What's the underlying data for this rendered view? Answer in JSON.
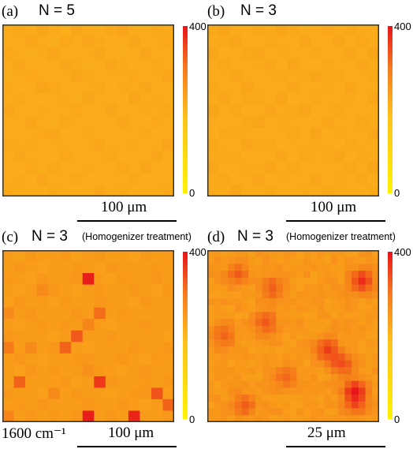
{
  "chart_data": [
    {
      "type": "heatmap",
      "panel_label": "(a)",
      "title": "N = 5",
      "note": "",
      "colorbar_ticks": [
        "400",
        "0"
      ],
      "vmin": 0,
      "vmax": 400,
      "scale_bar": "100 μm",
      "grid_cols": 15,
      "grid_rows": 15,
      "description_values": "nearly uniform, ~70-110 across all pixels",
      "values": [
        [
          90,
          95,
          88,
          100,
          92,
          85,
          97,
          90,
          88,
          95,
          102,
          90,
          87,
          94,
          90
        ],
        [
          88,
          92,
          99,
          90,
          86,
          95,
          92,
          100,
          93,
          88,
          90,
          97,
          92,
          89,
          95
        ],
        [
          95,
          90,
          86,
          94,
          100,
          90,
          88,
          92,
          97,
          90,
          86,
          92,
          100,
          90,
          88
        ],
        [
          92,
          98,
          92,
          88,
          91,
          97,
          93,
          86,
          90,
          99,
          94,
          88,
          90,
          96,
          92
        ],
        [
          86,
          90,
          95,
          92,
          88,
          90,
          100,
          94,
          88,
          92,
          90,
          95,
          88,
          92,
          98
        ],
        [
          94,
          88,
          90,
          100,
          95,
          88,
          92,
          90,
          96,
          88,
          93,
          90,
          97,
          88,
          90
        ],
        [
          90,
          96,
          92,
          88,
          90,
          94,
          86,
          98,
          90,
          92,
          88,
          100,
          92,
          94,
          88
        ],
        [
          98,
          90,
          88,
          94,
          92,
          90,
          95,
          88,
          92,
          97,
          90,
          88,
          94,
          90,
          96
        ],
        [
          88,
          92,
          100,
          90,
          87,
          96,
          90,
          92,
          88,
          90,
          99,
          92,
          88,
          95,
          90
        ],
        [
          92,
          88,
          90,
          95,
          98,
          88,
          92,
          96,
          90,
          88,
          92,
          90,
          96,
          88,
          92
        ],
        [
          95,
          90,
          94,
          88,
          92,
          90,
          88,
          90,
          98,
          92,
          90,
          94,
          88,
          92,
          100
        ],
        [
          88,
          97,
          90,
          92,
          88,
          95,
          92,
          88,
          90,
          96,
          88,
          90,
          92,
          98,
          88
        ],
        [
          92,
          88,
          95,
          90,
          96,
          88,
          90,
          94,
          88,
          90,
          95,
          88,
          100,
          90,
          92
        ],
        [
          90,
          94,
          88,
          98,
          90,
          92,
          96,
          88,
          92,
          88,
          90,
          96,
          88,
          92,
          90
        ],
        [
          96,
          90,
          92,
          88,
          94,
          90,
          88,
          92,
          98,
          90,
          94,
          88,
          92,
          90,
          95
        ]
      ]
    },
    {
      "type": "heatmap",
      "panel_label": "(b)",
      "title": "N = 3",
      "note": "",
      "colorbar_ticks": [
        "400",
        "0"
      ],
      "vmin": 0,
      "vmax": 400,
      "scale_bar": "100 μm",
      "grid_cols": 15,
      "grid_rows": 15,
      "values": [
        [
          95,
          100,
          92,
          88,
          96,
          90,
          100,
          94,
          88,
          92,
          98,
          90,
          95,
          92,
          88
        ],
        [
          90,
          94,
          100,
          92,
          88,
          96,
          92,
          88,
          98,
          90,
          92,
          100,
          88,
          95,
          92
        ],
        [
          98,
          88,
          92,
          96,
          100,
          88,
          94,
          92,
          90,
          96,
          88,
          92,
          98,
          90,
          100
        ],
        [
          92,
          96,
          88,
          92,
          94,
          98,
          88,
          100,
          92,
          88,
          96,
          90,
          92,
          98,
          90
        ],
        [
          88,
          92,
          98,
          90,
          88,
          92,
          96,
          90,
          94,
          100,
          90,
          96,
          88,
          92,
          96
        ],
        [
          96,
          90,
          92,
          100,
          92,
          88,
          92,
          98,
          88,
          92,
          94,
          88,
          100,
          90,
          92
        ],
        [
          90,
          98,
          88,
          94,
          96,
          92,
          100,
          88,
          92,
          96,
          90,
          92,
          94,
          88,
          98
        ],
        [
          100,
          92,
          96,
          88,
          90,
          98,
          92,
          94,
          100,
          88,
          92,
          96,
          90,
          92,
          88
        ],
        [
          92,
          88,
          90,
          96,
          100,
          88,
          94,
          92,
          88,
          92,
          98,
          90,
          88,
          96,
          92
        ],
        [
          88,
          96,
          94,
          92,
          88,
          92,
          90,
          96,
          92,
          100,
          88,
          94,
          92,
          90,
          98
        ],
        [
          96,
          90,
          88,
          100,
          94,
          96,
          88,
          92,
          90,
          94,
          92,
          88,
          96,
          92,
          90
        ],
        [
          92,
          94,
          96,
          88,
          92,
          90,
          98,
          88,
          96,
          90,
          94,
          100,
          88,
          94,
          92
        ],
        [
          98,
          88,
          92,
          94,
          90,
          100,
          92,
          96,
          88,
          92,
          90,
          92,
          96,
          88,
          100
        ],
        [
          90,
          96,
          88,
          92,
          98,
          88,
          94,
          90,
          92,
          98,
          88,
          94,
          90,
          96,
          88
        ],
        [
          94,
          92,
          100,
          90,
          92,
          96,
          88,
          92,
          94,
          88,
          96,
          90,
          92,
          88,
          94
        ]
      ]
    },
    {
      "type": "heatmap",
      "panel_label": "(c)",
      "title": "N = 3",
      "note": "(Homogenizer treatment)",
      "colorbar_ticks": [
        "400",
        "0"
      ],
      "vmin": 0,
      "vmax": 400,
      "scale_bar": "100 μm",
      "extra_label": "1600 cm⁻¹",
      "grid_cols": 15,
      "grid_rows": 15,
      "values": [
        [
          120,
          110,
          125,
          115,
          118,
          122,
          112,
          120,
          125,
          115,
          118,
          110,
          122,
          116,
          120
        ],
        [
          115,
          125,
          118,
          112,
          120,
          116,
          122,
          118,
          112,
          124,
          120,
          118,
          115,
          122,
          118
        ],
        [
          122,
          118,
          112,
          124,
          116,
          120,
          125,
          380,
          118,
          112,
          122,
          120,
          118,
          125,
          115
        ],
        [
          118,
          112,
          120,
          150,
          125,
          118,
          112,
          120,
          122,
          118,
          115,
          125,
          120,
          112,
          122
        ],
        [
          112,
          124,
          118,
          120,
          112,
          122,
          118,
          116,
          125,
          120,
          118,
          112,
          124,
          118,
          120
        ],
        [
          150,
          120,
          125,
          118,
          120,
          116,
          125,
          120,
          210,
          118,
          122,
          120,
          116,
          120,
          118
        ],
        [
          118,
          112,
          120,
          122,
          118,
          125,
          120,
          160,
          118,
          112,
          120,
          118,
          125,
          115,
          120
        ],
        [
          125,
          120,
          116,
          118,
          112,
          120,
          250,
          118,
          120,
          125,
          118,
          115,
          120,
          118,
          112
        ],
        [
          180,
          118,
          150,
          120,
          125,
          230,
          118,
          112,
          120,
          118,
          115,
          125,
          118,
          120,
          125
        ],
        [
          118,
          125,
          118,
          112,
          120,
          118,
          122,
          125,
          118,
          120,
          125,
          118,
          112,
          122,
          118
        ],
        [
          120,
          112,
          125,
          118,
          122,
          118,
          120,
          140,
          122,
          118,
          112,
          120,
          125,
          118,
          120
        ],
        [
          115,
          230,
          118,
          120,
          118,
          125,
          112,
          118,
          320,
          125,
          120,
          118,
          122,
          115,
          125
        ],
        [
          125,
          118,
          120,
          112,
          150,
          118,
          125,
          120,
          118,
          112,
          118,
          122,
          125,
          260,
          118
        ],
        [
          118,
          122,
          118,
          125,
          118,
          120,
          118,
          125,
          120,
          118,
          125,
          118,
          112,
          120,
          230
        ],
        [
          160,
          118,
          125,
          118,
          122,
          118,
          125,
          380,
          118,
          125,
          118,
          360,
          120,
          118,
          125
        ]
      ]
    },
    {
      "type": "heatmap",
      "panel_label": "(d)",
      "title": "N = 3",
      "note": "(Homogenizer treatment)",
      "colorbar_ticks": [
        "400",
        "0"
      ],
      "vmin": 0,
      "vmax": 400,
      "scale_bar": "25 μm",
      "grid_cols": 25,
      "grid_rows": 25
    }
  ],
  "colors": {
    "low": "#ffe61a",
    "high": "#e8141a",
    "frame": "#333333"
  }
}
